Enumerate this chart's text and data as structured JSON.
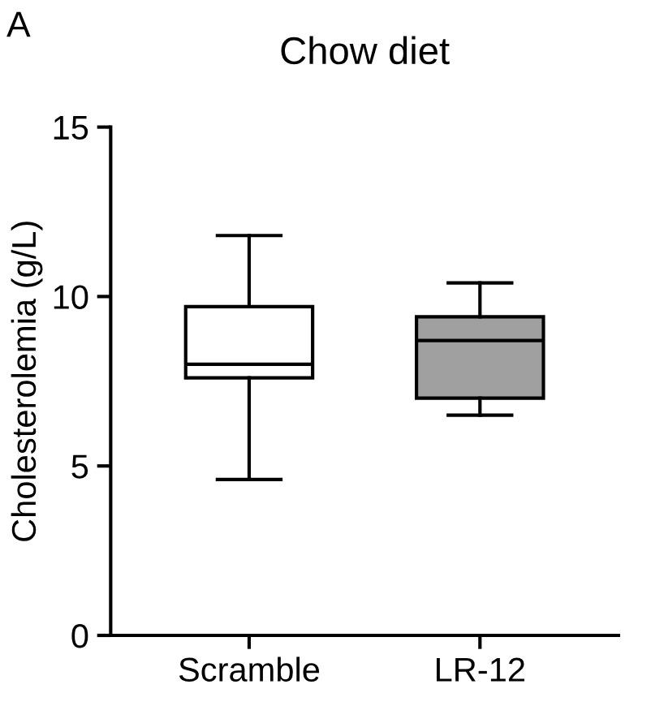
{
  "chart_data": {
    "type": "box",
    "title": "Chow diet",
    "ylabel": "Cholesterolemia (g/L)",
    "annotations": [
      "A"
    ],
    "categories": [
      "Scramble",
      "LR-12"
    ],
    "colors": [
      "#ffffff",
      "#a0a0a0"
    ],
    "boxes": [
      {
        "low": 4.6,
        "q1": 7.6,
        "median": 8.0,
        "q3": 9.7,
        "high": 11.8
      },
      {
        "low": 6.5,
        "q1": 7.0,
        "median": 8.7,
        "q3": 9.4,
        "high": 10.4
      }
    ],
    "ylim": [
      0,
      15
    ],
    "yticks": [
      0,
      5,
      10,
      15
    ],
    "grid": false
  }
}
